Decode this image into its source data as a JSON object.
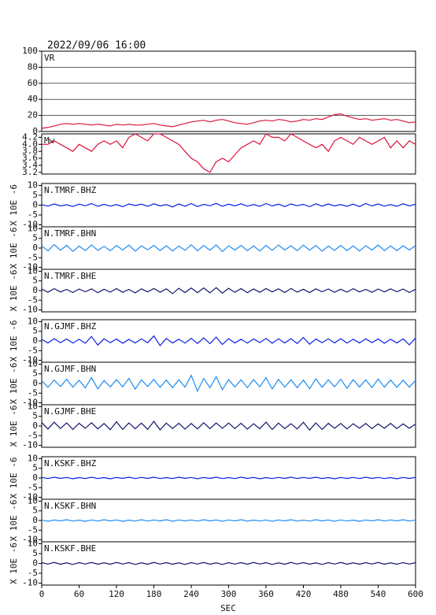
{
  "chart_data": {
    "title": "2022/09/06 16:00",
    "xlabel": "SEC",
    "xlim": [
      0,
      600
    ],
    "xticks": [
      0,
      60,
      120,
      180,
      240,
      300,
      360,
      420,
      480,
      540,
      600
    ],
    "x": [
      0,
      10,
      20,
      30,
      40,
      50,
      60,
      70,
      80,
      90,
      100,
      110,
      120,
      130,
      140,
      150,
      160,
      170,
      180,
      190,
      200,
      210,
      220,
      230,
      240,
      250,
      260,
      270,
      280,
      290,
      300,
      310,
      320,
      330,
      340,
      350,
      360,
      370,
      380,
      390,
      400,
      410,
      420,
      430,
      440,
      450,
      460,
      470,
      480,
      490,
      500,
      510,
      520,
      530,
      540,
      550,
      560,
      570,
      580,
      590,
      600
    ],
    "panels": [
      {
        "type": "line",
        "label": "VR",
        "color": "#dc143c",
        "ylim": [
          0,
          100
        ],
        "yticks": [
          0,
          20,
          40,
          60,
          80,
          100
        ],
        "grid": true,
        "values": [
          4,
          5,
          7,
          9,
          10,
          9,
          10,
          9,
          8,
          9,
          8,
          7,
          9,
          8,
          9,
          8,
          8,
          9,
          10,
          8,
          7,
          6,
          8,
          10,
          12,
          13,
          14,
          12,
          14,
          15,
          13,
          11,
          10,
          9,
          11,
          13,
          14,
          13,
          15,
          14,
          12,
          13,
          15,
          14,
          16,
          15,
          18,
          21,
          22,
          19,
          17,
          15,
          16,
          14,
          15,
          16,
          14,
          15,
          13,
          11,
          12
        ]
      },
      {
        "type": "line",
        "label": "Mw",
        "color": "#dc143c",
        "ylim": [
          3.15,
          4.3
        ],
        "yticks": [
          {
            "value": 3.2,
            "label": "3.2"
          },
          {
            "value": 3.4,
            "label": "3.4"
          },
          {
            "value": 3.6,
            "label": "3.6"
          },
          {
            "value": 3.8,
            "label": "3.8"
          },
          {
            "value": 4,
            "label": "4.0"
          },
          {
            "value": 4.2,
            "label": "4.2"
          }
        ],
        "grid": false,
        "values": [
          4.0,
          4.0,
          4.1,
          4.0,
          3.9,
          3.8,
          4.0,
          3.9,
          3.8,
          4.0,
          4.1,
          4.0,
          4.1,
          3.9,
          4.2,
          4.3,
          4.2,
          4.1,
          4.3,
          4.3,
          4.2,
          4.1,
          4.0,
          3.8,
          3.6,
          3.5,
          3.3,
          3.2,
          3.5,
          3.6,
          3.5,
          3.7,
          3.9,
          4.0,
          4.1,
          4.0,
          4.3,
          4.2,
          4.2,
          4.1,
          4.3,
          4.2,
          4.1,
          4.0,
          3.9,
          4.0,
          3.8,
          4.1,
          4.2,
          4.1,
          4.0,
          4.2,
          4.1,
          4.0,
          4.1,
          4.2,
          3.9,
          4.1,
          3.9,
          4.1,
          4.0
        ]
      },
      {
        "type": "line",
        "label": "N.TMRF.BHZ",
        "ylabel": "X 10E -6",
        "color": "#0a1ee6",
        "ylim": [
          -11,
          11
        ],
        "yticks": [
          -10,
          -5,
          0,
          5,
          10
        ],
        "values": [
          0.3,
          -0.5,
          0.6,
          -0.4,
          0.2,
          -0.7,
          0.5,
          -0.3,
          0.8,
          -0.6,
          0.4,
          -0.5,
          0.3,
          -0.8,
          0.6,
          -0.2,
          0.5,
          -0.6,
          0.7,
          -0.4,
          0.3,
          -0.9,
          0.6,
          -0.5,
          0.8,
          -0.7,
          0.4,
          -0.3,
          0.9,
          -0.6,
          0.5,
          -0.4,
          0.7,
          -0.5,
          0.3,
          -0.6,
          0.8,
          -0.4,
          0.5,
          -0.7,
          0.6,
          -0.3,
          0.4,
          -0.8,
          0.7,
          -0.5,
          0.6,
          -0.4,
          0.3,
          -0.6,
          0.5,
          -0.7,
          0.8,
          -0.4,
          0.6,
          -0.5,
          0.3,
          -0.6,
          0.7,
          -0.4,
          0.5
        ]
      },
      {
        "type": "line",
        "label": "N.TMRF.BHN",
        "ylabel": "X 10E -6",
        "color": "#1e8cf0",
        "ylim": [
          -11,
          11
        ],
        "yticks": [
          -10,
          -5,
          0,
          5,
          10
        ],
        "values": [
          1.2,
          -1.5,
          1.8,
          -1.1,
          1.4,
          -1.7,
          1.0,
          -1.3,
          1.6,
          -1.2,
          0.9,
          -1.4,
          1.3,
          -1.0,
          1.5,
          -1.6,
          1.1,
          -0.9,
          1.4,
          -1.3,
          1.2,
          -1.5,
          1.0,
          -1.2,
          1.7,
          -1.4,
          1.3,
          -1.1,
          1.6,
          -1.8,
          1.2,
          -1.0,
          1.4,
          -1.3,
          1.1,
          -1.5,
          1.3,
          -1.2,
          1.6,
          -1.0,
          1.2,
          -1.4,
          1.5,
          -1.1,
          1.3,
          -1.6,
          1.0,
          -1.2,
          1.4,
          -1.3,
          1.1,
          -1.5,
          1.2,
          -1.0,
          1.6,
          -1.3,
          1.1,
          -1.4,
          1.2,
          -1.0,
          1.3
        ]
      },
      {
        "type": "line",
        "label": "N.TMRF.BHE",
        "ylabel": "X 10E -6",
        "color": "#141470",
        "ylim": [
          -11,
          11
        ],
        "yticks": [
          -10,
          -5,
          0,
          5,
          10
        ],
        "values": [
          0.8,
          -0.9,
          1.0,
          -0.7,
          0.6,
          -1.0,
          0.8,
          -0.6,
          0.9,
          -1.1,
          0.7,
          -0.8,
          1.0,
          -0.9,
          0.6,
          -1.2,
          0.9,
          -0.7,
          1.1,
          -0.8,
          0.9,
          -1.6,
          1.2,
          -1.0,
          1.3,
          -1.1,
          1.4,
          -1.2,
          1.5,
          -1.3,
          1.2,
          -0.9,
          1.0,
          -1.1,
          0.8,
          -0.9,
          1.0,
          -0.7,
          0.9,
          -1.0,
          1.1,
          -0.8,
          0.7,
          -1.0,
          0.9,
          -0.6,
          0.8,
          -0.9,
          0.7,
          -0.8,
          1.0,
          -0.7,
          0.6,
          -0.9,
          0.8,
          -0.7,
          0.9,
          -0.6,
          0.8,
          -1.0,
          0.7
        ]
      },
      {
        "type": "line",
        "label": "N.GJMF.BHZ",
        "ylabel": "X 10E -6",
        "color": "#0a1ee6",
        "ylim": [
          -11,
          11
        ],
        "yticks": [
          -10,
          -5,
          0,
          5,
          10
        ],
        "values": [
          0.8,
          -1.0,
          1.2,
          -0.9,
          1.0,
          -1.1,
          0.9,
          -1.2,
          2.3,
          -2.1,
          1.1,
          -0.9,
          1.0,
          -1.2,
          0.8,
          -1.0,
          1.1,
          -0.9,
          2.6,
          -2.4,
          1.3,
          -1.0,
          0.9,
          -1.1,
          1.4,
          -1.3,
          1.6,
          -1.4,
          2.0,
          -1.8,
          1.2,
          -1.0,
          0.9,
          -1.1,
          1.0,
          -0.8,
          1.3,
          -1.2,
          1.1,
          -1.0,
          1.2,
          -1.3,
          1.8,
          -1.7,
          1.0,
          -0.9,
          1.1,
          -1.0,
          1.2,
          -1.1,
          0.9,
          -1.0,
          1.1,
          -0.8,
          1.0,
          -1.2,
          0.9,
          -1.0,
          1.1,
          -2.0,
          1.5
        ]
      },
      {
        "type": "line",
        "label": "N.GJMF.BHN",
        "ylabel": "X 10E -6",
        "color": "#1e8cf0",
        "ylim": [
          -11,
          11
        ],
        "yticks": [
          -10,
          -5,
          0,
          5,
          10
        ],
        "values": [
          1.5,
          -2.0,
          1.8,
          -1.6,
          2.2,
          -1.9,
          1.7,
          -2.3,
          3.0,
          -2.8,
          1.6,
          -1.8,
          2.0,
          -1.7,
          2.6,
          -2.9,
          1.9,
          -1.6,
          2.1,
          -2.0,
          1.8,
          -2.2,
          2.0,
          -1.9,
          4.2,
          -4.0,
          2.6,
          -2.2,
          3.5,
          -3.2,
          2.0,
          -1.8,
          1.9,
          -2.1,
          2.0,
          -1.7,
          3.0,
          -2.8,
          2.1,
          -1.9,
          2.0,
          -2.2,
          1.8,
          -2.7,
          2.4,
          -2.0,
          1.9,
          -1.7,
          2.2,
          -2.5,
          2.0,
          -1.8,
          1.9,
          -2.1,
          2.3,
          -1.9,
          1.8,
          -2.0,
          1.7,
          -1.9,
          1.6
        ]
      },
      {
        "type": "line",
        "label": "N.GJMF.BHE",
        "ylabel": "X 10E -6",
        "color": "#141470",
        "ylim": [
          -11,
          11
        ],
        "yticks": [
          -10,
          -5,
          0,
          5,
          10
        ],
        "values": [
          1.8,
          -1.5,
          2.0,
          -1.3,
          1.6,
          -1.8,
          1.4,
          -1.2,
          1.7,
          -1.5,
          1.3,
          -1.9,
          2.2,
          -1.8,
          1.6,
          -1.4,
          1.5,
          -1.7,
          2.4,
          -2.0,
          1.5,
          -1.3,
          1.4,
          -1.6,
          1.3,
          -1.5,
          1.7,
          -1.4,
          1.6,
          -1.2,
          1.5,
          -1.3,
          1.4,
          -1.6,
          1.2,
          -1.4,
          2.0,
          -1.8,
          1.5,
          -1.3,
          1.2,
          -1.5,
          1.9,
          -2.1,
          1.6,
          -1.8,
          1.4,
          -1.2,
          1.3,
          -1.5,
          1.2,
          -1.1,
          1.3,
          -1.4,
          1.1,
          -1.2,
          1.4,
          -1.3,
          1.1,
          -1.2,
          1.0
        ]
      },
      {
        "type": "line",
        "label": "N.KSKF.BHZ",
        "ylabel": "X 10E -6",
        "color": "#0a1ee6",
        "ylim": [
          -11,
          11
        ],
        "yticks": [
          -10,
          -5,
          0,
          5,
          10
        ],
        "values": [
          0.3,
          -0.3,
          0.4,
          -0.2,
          0.3,
          -0.4,
          0.2,
          -0.3,
          0.4,
          -0.3,
          0.2,
          -0.4,
          0.3,
          -0.2,
          0.4,
          -0.3,
          0.3,
          -0.2,
          0.4,
          -0.3,
          0.2,
          -0.3,
          0.4,
          -0.2,
          0.3,
          -0.4,
          0.3,
          -0.2,
          0.4,
          -0.3,
          0.2,
          -0.3,
          0.4,
          -0.2,
          0.3,
          -0.4,
          0.2,
          -0.3,
          0.3,
          -0.2,
          0.4,
          -0.3,
          0.3,
          -0.2,
          0.4,
          -0.3,
          0.2,
          -0.4,
          0.3,
          -0.2,
          0.3,
          -0.3,
          0.4,
          -0.2,
          0.3,
          -0.3,
          0.2,
          -0.4,
          0.3,
          -0.2,
          0.3
        ]
      },
      {
        "type": "line",
        "label": "N.KSKF.BHN",
        "ylabel": "X 10E -6",
        "color": "#1e8cf0",
        "ylim": [
          -11,
          11
        ],
        "yticks": [
          -10,
          -5,
          0,
          5,
          10
        ],
        "values": [
          0.3,
          -0.4,
          0.3,
          -0.2,
          0.4,
          -0.3,
          0.2,
          -0.4,
          0.3,
          -0.3,
          0.4,
          -0.2,
          0.3,
          -0.4,
          0.2,
          -0.3,
          0.4,
          -0.3,
          0.3,
          -0.2,
          0.4,
          -0.4,
          0.3,
          -0.2,
          0.3,
          -0.3,
          0.4,
          -0.2,
          0.3,
          -0.4,
          0.3,
          -0.2,
          0.4,
          -0.3,
          0.2,
          -0.3,
          0.3,
          -0.4,
          0.3,
          -0.2,
          0.4,
          -0.3,
          0.2,
          -0.3,
          0.4,
          -0.2,
          0.3,
          -0.4,
          0.3,
          -0.3,
          0.2,
          -0.4,
          0.3,
          -0.2,
          0.4,
          -0.3,
          0.3,
          -0.2,
          0.4,
          -0.3,
          0.3
        ]
      },
      {
        "type": "line",
        "label": "N.KSKF.BHE",
        "ylabel": "X 10E -6",
        "color": "#141470",
        "ylim": [
          -11,
          11
        ],
        "yticks": [
          -10,
          -5,
          0,
          5,
          10
        ],
        "values": [
          0.4,
          -0.3,
          0.5,
          -0.4,
          0.3,
          -0.5,
          0.4,
          -0.3,
          0.5,
          -0.4,
          0.3,
          -0.4,
          0.5,
          -0.3,
          0.4,
          -0.5,
          0.3,
          -0.4,
          0.5,
          -0.3,
          0.4,
          -0.4,
          0.3,
          -0.5,
          0.4,
          -0.3,
          0.5,
          -0.4,
          0.3,
          -0.5,
          0.4,
          -0.3,
          0.4,
          -0.4,
          0.5,
          -0.3,
          0.4,
          -0.5,
          0.3,
          -0.4,
          0.5,
          -0.3,
          0.4,
          -0.4,
          0.3,
          -0.5,
          0.4,
          -0.3,
          0.5,
          -0.4,
          0.3,
          -0.4,
          0.4,
          -0.3,
          0.5,
          -0.4,
          0.3,
          -0.4,
          0.4,
          -0.3,
          0.4
        ]
      }
    ]
  }
}
